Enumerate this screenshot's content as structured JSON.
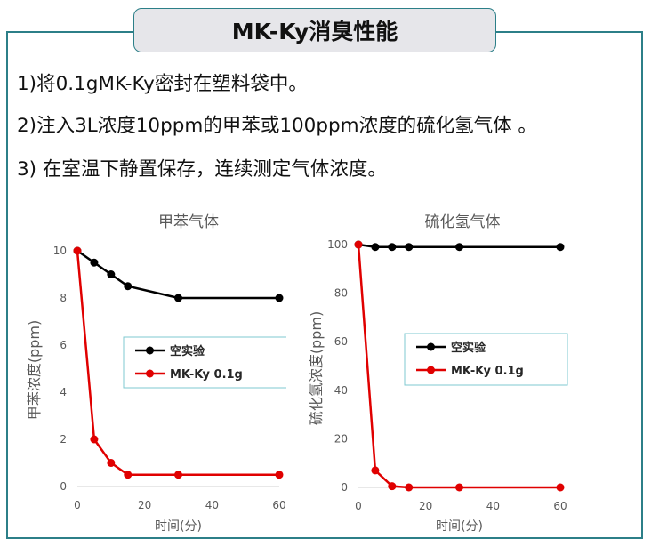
{
  "header": {
    "title": "MK-Ky消臭性能"
  },
  "steps": [
    "1)将0.1gMK-Ky密封在塑料袋中。",
    "2)注入3L浓度10ppm的甲苯或100ppm浓度的硫化氢气体 。",
    "3) 在室温下静置保存，连续测定气体浓度。"
  ],
  "colors": {
    "frame": "#2c7f88",
    "tab_fill": "#e6e6ea",
    "blank": "#000000",
    "mk": "#e00000",
    "legend_border": "#7fc9d0"
  },
  "chart_data": [
    {
      "type": "line",
      "title": "甲苯气体",
      "xlabel": "时间(分)",
      "ylabel": "甲苯浓度(ppm)",
      "xlim": [
        0,
        60
      ],
      "ylim": [
        0,
        10
      ],
      "x_ticks": [
        "0",
        "20",
        "40",
        "60"
      ],
      "y_ticks": [
        "0",
        "2",
        "4",
        "6",
        "8",
        "10"
      ],
      "x": [
        0,
        5,
        10,
        15,
        30,
        60
      ],
      "series": [
        {
          "name": "空实验",
          "color": "#000000",
          "values": [
            10,
            9.5,
            9,
            8.5,
            8,
            8
          ]
        },
        {
          "name": "MK-Ky 0.1g",
          "color": "#e00000",
          "values": [
            10,
            2,
            1,
            0.5,
            0.5,
            0.5
          ]
        }
      ],
      "legend_position": "center-right",
      "grid": false
    },
    {
      "type": "line",
      "title": "硫化氢气体",
      "xlabel": "时间(分)",
      "ylabel": "硫化氢浓度(ppm)",
      "xlim": [
        0,
        60
      ],
      "ylim": [
        0,
        100
      ],
      "x_ticks": [
        "0",
        "20",
        "40",
        "60"
      ],
      "y_ticks": [
        "0",
        "20",
        "40",
        "60",
        "80",
        "100"
      ],
      "x": [
        0,
        5,
        10,
        15,
        30,
        60
      ],
      "series": [
        {
          "name": "空实验",
          "color": "#000000",
          "values": [
            100,
            99,
            99,
            99,
            99,
            99
          ]
        },
        {
          "name": "MK-Ky 0.1g",
          "color": "#e00000",
          "values": [
            100,
            7,
            0.5,
            0,
            0,
            0
          ]
        }
      ],
      "legend_position": "center-right",
      "grid": false
    }
  ]
}
